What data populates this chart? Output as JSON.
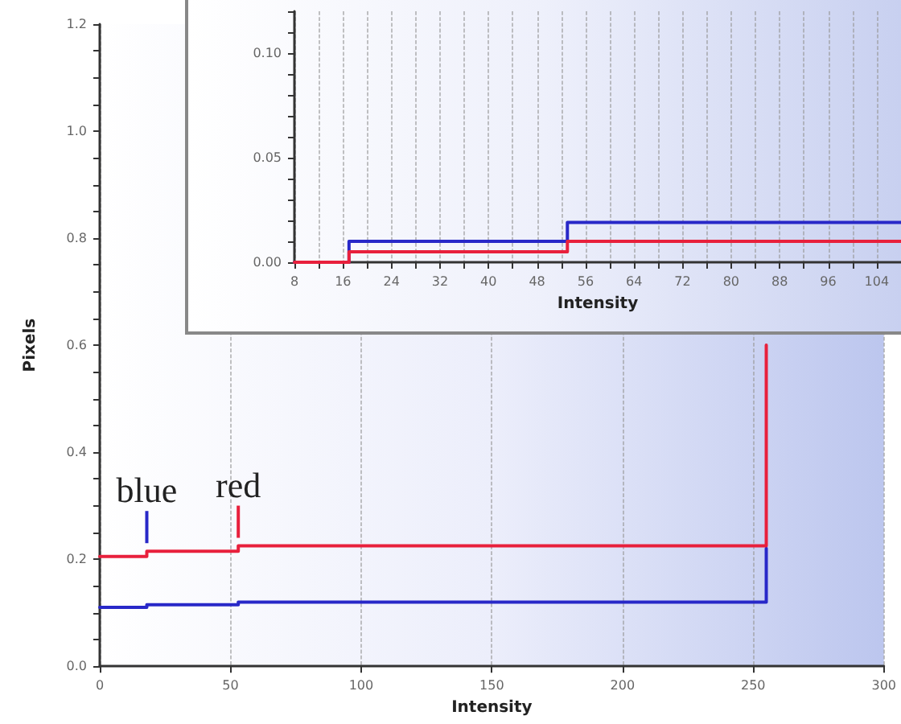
{
  "chart_data": [
    {
      "type": "step",
      "xlabel": "Intensity",
      "ylabel": "Pixels",
      "x": [
        0,
        18,
        53,
        255
      ],
      "series": [
        {
          "color": "#2828c8",
          "values": [
            0.11,
            0.115,
            0.12,
            0.22
          ]
        },
        {
          "color": "#e8203c",
          "values": [
            0.205,
            0.215,
            0.225,
            0.6
          ]
        }
      ],
      "xlim": [
        0,
        300
      ],
      "xticks": [
        0,
        50,
        100,
        150,
        200,
        250,
        300
      ],
      "ylim": [
        0,
        1.2
      ],
      "yticks": [
        {
          "value": 0,
          "label": "0.0"
        },
        {
          "value": 0.05,
          "label": null
        },
        {
          "value": 0.1,
          "label": null
        },
        {
          "value": 0.15,
          "label": null
        },
        {
          "value": 0.2,
          "label": "0.2"
        },
        {
          "value": 0.25,
          "label": null
        },
        {
          "value": 0.3,
          "label": null
        },
        {
          "value": 0.35,
          "label": null
        },
        {
          "value": 0.4,
          "label": "0.4"
        },
        {
          "value": 0.45,
          "label": null
        },
        {
          "value": 0.5,
          "label": null
        },
        {
          "value": 0.55,
          "label": null
        },
        {
          "value": 0.6,
          "label": "0.6"
        },
        {
          "value": 0.65,
          "label": null
        },
        {
          "value": 0.7,
          "label": null
        },
        {
          "value": 0.75,
          "label": null
        },
        {
          "value": 0.8,
          "label": "0.8"
        },
        {
          "value": 0.85,
          "label": null
        },
        {
          "value": 0.9,
          "label": null
        },
        {
          "value": 0.95,
          "label": null
        },
        {
          "value": 1.0,
          "label": "1.0"
        },
        {
          "value": 1.05,
          "label": null
        },
        {
          "value": 1.1,
          "label": null
        },
        {
          "value": 1.15,
          "label": null
        },
        {
          "value": 1.2,
          "label": "1.2"
        }
      ],
      "grid": "x",
      "marker": "none",
      "line_style": "solid",
      "annotations": [
        {
          "text": "blue",
          "x": 18,
          "y": 0.23
        },
        {
          "text": "red",
          "x": 53,
          "y": 0.24
        }
      ]
    },
    {
      "type": "step",
      "xlabel": "Intensity",
      "x": [
        8,
        17,
        53,
        108
      ],
      "series": [
        {
          "color": "#2828c8",
          "values": [
            0,
            0.01,
            0.019,
            0.019
          ]
        },
        {
          "color": "#e8203c",
          "values": [
            0,
            0.005,
            0.01,
            0.01
          ]
        }
      ],
      "xlim": [
        8,
        108
      ],
      "xticks": [
        8,
        {
          "value": 12,
          "label": null
        },
        16,
        {
          "value": 20,
          "label": null
        },
        24,
        {
          "value": 28,
          "label": null
        },
        32,
        {
          "value": 36,
          "label": null
        },
        40,
        {
          "value": 44,
          "label": null
        },
        48,
        {
          "value": 52,
          "label": null
        },
        56,
        {
          "value": 60,
          "label": null
        },
        64,
        {
          "value": 68,
          "label": null
        },
        72,
        {
          "value": 76,
          "label": null
        },
        80,
        {
          "value": 84,
          "label": null
        },
        88,
        {
          "value": 92,
          "label": null
        },
        96,
        {
          "value": 100,
          "label": null
        },
        104,
        {
          "value": 108,
          "label": null
        }
      ],
      "ylim": [
        0,
        0.12
      ],
      "yticks": [
        {
          "value": 0,
          "label": "0.00"
        },
        {
          "value": 0.01,
          "label": null
        },
        {
          "value": 0.02,
          "label": null
        },
        {
          "value": 0.03,
          "label": null
        },
        {
          "value": 0.04,
          "label": null
        },
        {
          "value": 0.05,
          "label": "0.05"
        },
        {
          "value": 0.06,
          "label": null
        },
        {
          "value": 0.07,
          "label": null
        },
        {
          "value": 0.08,
          "label": null
        },
        {
          "value": 0.09,
          "label": null
        },
        {
          "value": 0.1,
          "label": "0.10"
        },
        {
          "value": 0.11,
          "label": null
        },
        {
          "value": 0.12,
          "label": null
        }
      ],
      "grid": "x",
      "marker": "none",
      "line_style": "solid"
    }
  ]
}
